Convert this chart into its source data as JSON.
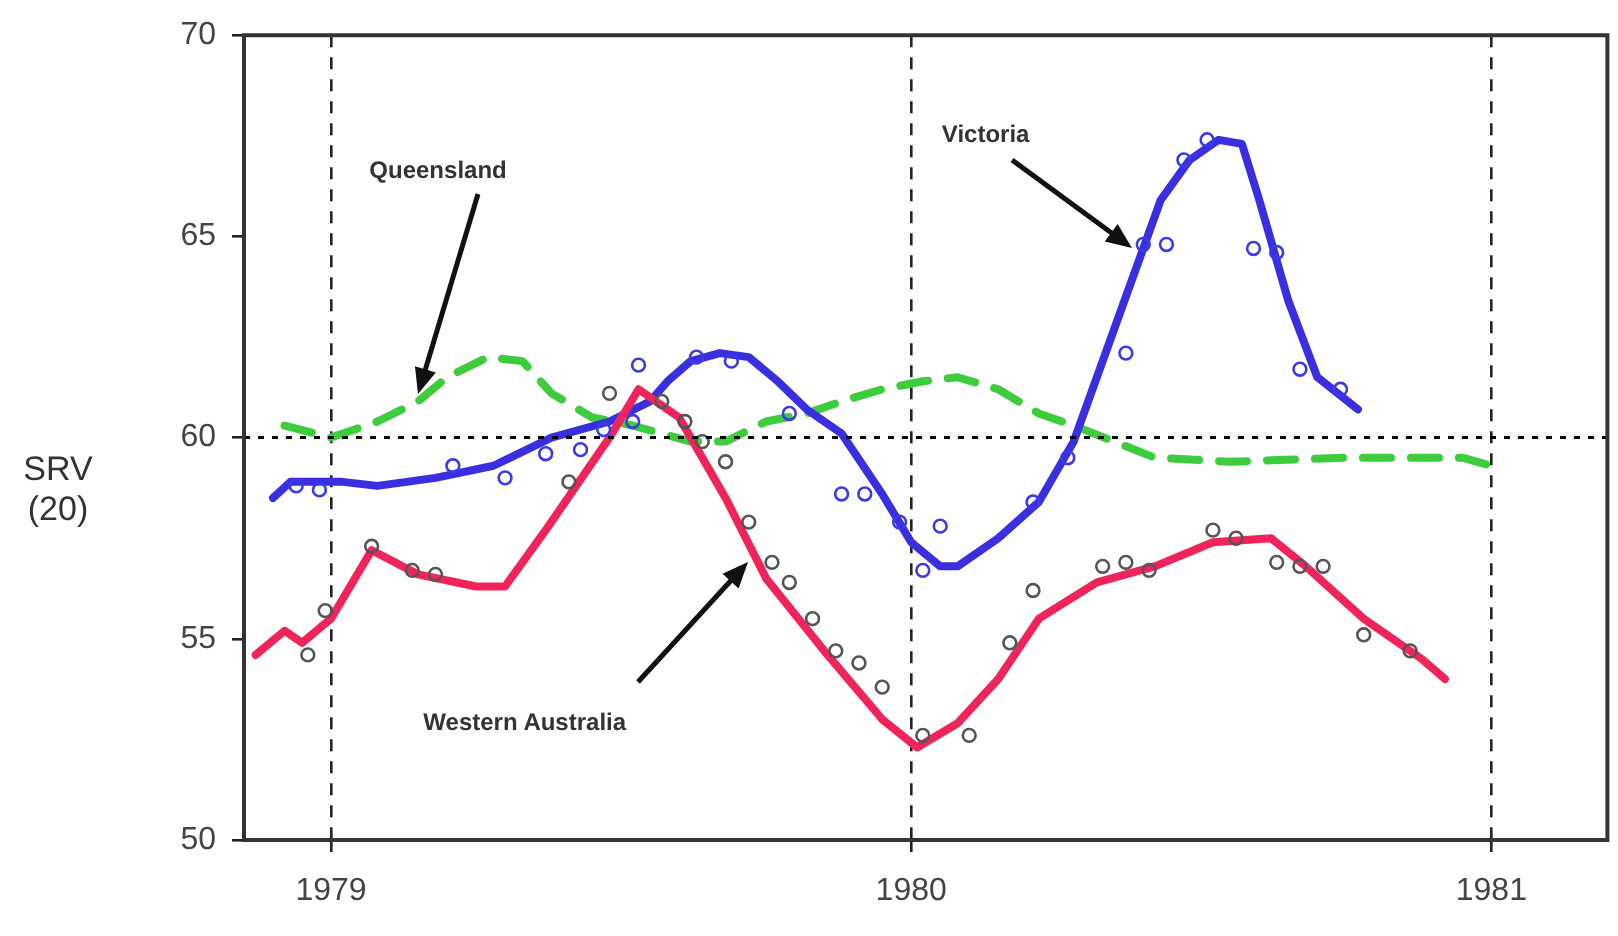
{
  "chart_data": {
    "type": "line",
    "ylabel": "SRV (20)",
    "xlim": [
      1978.85,
      1981.2
    ],
    "xticks": [
      1979,
      1980,
      1981
    ],
    "ylim": [
      50,
      70
    ],
    "yticks": [
      50,
      55,
      60,
      65,
      70
    ],
    "grid": "x",
    "ref_lines": [
      {
        "axis": "y",
        "value": 60,
        "color": "#000000",
        "line_style": "dotted"
      }
    ],
    "series": [
      {
        "color": "#f0245a",
        "line_style": "solid",
        "marker": "none",
        "x": [
          1978.87,
          1978.92,
          1978.95,
          1979.0,
          1979.07,
          1979.15,
          1979.25,
          1979.3,
          1979.37,
          1979.48,
          1979.53,
          1979.6,
          1979.68,
          1979.75,
          1979.85,
          1979.95,
          1980.01,
          1980.08,
          1980.15,
          1980.22,
          1980.32,
          1980.42,
          1980.52,
          1980.62,
          1980.68,
          1980.78,
          1980.88,
          1980.92
        ],
        "values": [
          54.6,
          55.2,
          54.9,
          55.5,
          57.2,
          56.6,
          56.3,
          56.3,
          57.7,
          60.0,
          61.2,
          60.5,
          58.5,
          56.5,
          54.7,
          53.0,
          52.3,
          52.9,
          54.0,
          55.5,
          56.4,
          56.8,
          57.4,
          57.5,
          56.8,
          55.5,
          54.5,
          54.0
        ]
      },
      {
        "color": "#3a2fe0",
        "line_style": "solid",
        "marker": "none",
        "x": [
          1978.9,
          1978.93,
          1979.02,
          1979.08,
          1979.18,
          1979.28,
          1979.38,
          1979.48,
          1979.55,
          1979.58,
          1979.62,
          1979.67,
          1979.72,
          1979.77,
          1979.82,
          1979.88,
          1979.95,
          1980.0,
          1980.05,
          1980.08,
          1980.15,
          1980.22,
          1980.28,
          1980.33,
          1980.38,
          1980.43,
          1980.48,
          1980.53,
          1980.57,
          1980.6,
          1980.65,
          1980.7,
          1980.77
        ],
        "values": [
          58.5,
          58.9,
          58.9,
          58.8,
          59.0,
          59.3,
          60.0,
          60.4,
          60.9,
          61.4,
          61.9,
          62.1,
          62.0,
          61.4,
          60.7,
          60.1,
          58.6,
          57.4,
          56.8,
          56.8,
          57.5,
          58.4,
          59.9,
          61.9,
          63.9,
          65.9,
          66.9,
          67.4,
          67.3,
          65.9,
          63.4,
          61.5,
          60.7
        ]
      },
      {
        "color": "#3ccc3c",
        "line_style": "dashed",
        "marker": "none",
        "x": [
          1978.92,
          1979.0,
          1979.08,
          1979.15,
          1979.2,
          1979.27,
          1979.33,
          1979.38,
          1979.45,
          1979.52,
          1979.62,
          1979.68,
          1979.75,
          1979.82,
          1979.88,
          1979.95,
          1980.02,
          1980.08,
          1980.15,
          1980.22,
          1980.28,
          1980.35,
          1980.42,
          1980.55,
          1980.75,
          1980.95,
          1981.0
        ],
        "values": [
          60.3,
          60.0,
          60.4,
          60.9,
          61.5,
          62.0,
          61.9,
          61.1,
          60.5,
          60.3,
          59.9,
          59.9,
          60.4,
          60.6,
          60.9,
          61.2,
          61.4,
          61.5,
          61.2,
          60.6,
          60.3,
          59.9,
          59.5,
          59.4,
          59.5,
          59.5,
          59.3
        ]
      },
      {
        "type": "scatter",
        "color": "#555555",
        "marker": "circle",
        "x": [
          1978.96,
          1978.99,
          1979.07,
          1979.14,
          1979.18,
          1979.41,
          1979.48,
          1979.57,
          1979.61,
          1979.64,
          1979.68,
          1979.72,
          1979.76,
          1979.79,
          1979.83,
          1979.87,
          1979.91,
          1979.95,
          1980.02,
          1980.1,
          1980.17,
          1980.21,
          1980.33,
          1980.37,
          1980.41,
          1980.52,
          1980.56,
          1980.63,
          1980.67,
          1980.71,
          1980.78,
          1980.86
        ],
        "values": [
          54.6,
          55.7,
          57.3,
          56.7,
          56.6,
          58.9,
          61.1,
          60.9,
          60.4,
          59.9,
          59.4,
          57.9,
          56.9,
          56.4,
          55.5,
          54.7,
          54.4,
          53.8,
          52.6,
          52.6,
          54.9,
          56.2,
          56.8,
          56.9,
          56.7,
          57.7,
          57.5,
          56.9,
          56.8,
          56.8,
          55.1,
          54.7
        ]
      },
      {
        "type": "scatter",
        "color": "#3a3ae8",
        "marker": "circle",
        "x": [
          1978.94,
          1978.98,
          1979.21,
          1979.3,
          1979.37,
          1979.43,
          1979.47,
          1979.52,
          1979.53,
          1979.63,
          1979.69,
          1979.79,
          1979.88,
          1979.92,
          1979.98,
          1980.02,
          1980.05,
          1980.21,
          1980.27,
          1980.37,
          1980.4,
          1980.44,
          1980.47,
          1980.51,
          1980.59,
          1980.63,
          1980.67,
          1980.74
        ],
        "values": [
          58.8,
          58.7,
          59.3,
          59.0,
          59.6,
          59.7,
          60.2,
          60.4,
          61.8,
          62.0,
          61.9,
          60.6,
          58.6,
          58.6,
          57.9,
          56.7,
          57.8,
          58.4,
          59.5,
          62.1,
          64.8,
          64.8,
          66.9,
          67.4,
          64.7,
          64.6,
          61.7,
          61.2
        ]
      }
    ],
    "annotations": [
      {
        "text": "Queensland",
        "x": 1979.15,
        "y": 61.1
      },
      {
        "text": "Victoria",
        "x": 1980.38,
        "y": 64.7
      },
      {
        "text": "Western Australia",
        "x": 1979.72,
        "y": 56.9
      }
    ]
  }
}
